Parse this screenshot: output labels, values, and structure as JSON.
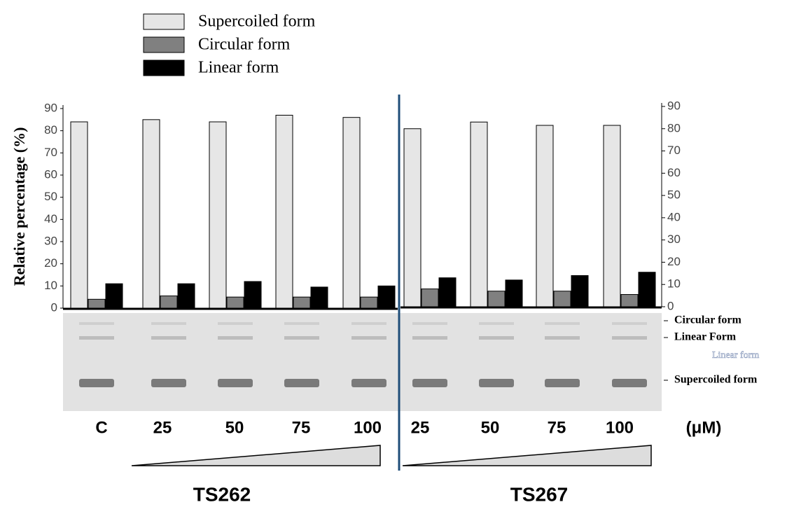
{
  "chart_data": {
    "type": "bar",
    "y_label": "Relative percentage (%)",
    "categories": [
      "C",
      "25",
      "50",
      "75",
      "100",
      "25",
      "50",
      "75",
      "100"
    ],
    "unit_label": "(μM)",
    "groups": [
      "TS262",
      "TS267"
    ],
    "series": [
      {
        "name": "Supercoiled form",
        "color": "#e6e6e6",
        "values": [
          84,
          85,
          84,
          87,
          86,
          80,
          83,
          81.5,
          81.5
        ]
      },
      {
        "name": "Circular form",
        "color": "#808080",
        "values": [
          4,
          5.5,
          5,
          5,
          5,
          8,
          7,
          7,
          5.5
        ]
      },
      {
        "name": "Linear form",
        "color": "#000000",
        "values": [
          11,
          11,
          12,
          9.5,
          10,
          13,
          12,
          14,
          15.5
        ]
      }
    ],
    "ylim": [
      0,
      90
    ],
    "yticks": [
      0,
      10,
      20,
      30,
      40,
      50,
      60,
      70,
      80,
      90
    ],
    "y2lim": [
      0,
      90
    ],
    "y2ticks": [
      0,
      10,
      20,
      30,
      40,
      50,
      60,
      70,
      80,
      90
    ],
    "gel_labels": [
      "Circular form",
      "Linear Form",
      "Linear form",
      "Supercoiled form"
    ]
  }
}
